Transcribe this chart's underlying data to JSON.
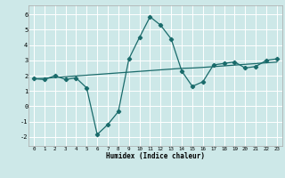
{
  "xlabel": "Humidex (Indice chaleur)",
  "background_color": "#cde8e8",
  "grid_color": "#ffffff",
  "line_color": "#1a6b6b",
  "xlim": [
    -0.5,
    23.5
  ],
  "ylim": [
    -2.6,
    6.6
  ],
  "yticks": [
    -2,
    -1,
    0,
    1,
    2,
    3,
    4,
    5,
    6
  ],
  "xticks": [
    0,
    1,
    2,
    3,
    4,
    5,
    6,
    7,
    8,
    9,
    10,
    11,
    12,
    13,
    14,
    15,
    16,
    17,
    18,
    19,
    20,
    21,
    22,
    23
  ],
  "curve1_x": [
    0,
    1,
    2,
    3,
    4,
    5,
    6,
    7,
    8,
    9,
    10,
    11,
    12,
    13,
    14,
    15,
    16,
    17,
    18,
    19,
    20,
    21,
    22,
    23
  ],
  "curve1_y": [
    1.8,
    1.75,
    2.0,
    1.75,
    1.85,
    1.2,
    -1.85,
    -1.2,
    -0.35,
    3.1,
    4.5,
    5.85,
    5.3,
    4.4,
    2.3,
    1.3,
    1.6,
    2.7,
    2.8,
    2.9,
    2.5,
    2.6,
    3.0,
    3.1
  ],
  "curve2_x": [
    0,
    1,
    2,
    3,
    4,
    5,
    6,
    7,
    8,
    9,
    10,
    11,
    12,
    13,
    14,
    15,
    16,
    17,
    18,
    19,
    20,
    21,
    22,
    23
  ],
  "curve2_y": [
    1.8,
    1.82,
    1.88,
    1.93,
    1.98,
    2.03,
    2.08,
    2.13,
    2.18,
    2.23,
    2.28,
    2.33,
    2.38,
    2.43,
    2.48,
    2.5,
    2.54,
    2.59,
    2.64,
    2.69,
    2.74,
    2.79,
    2.84,
    2.89
  ]
}
